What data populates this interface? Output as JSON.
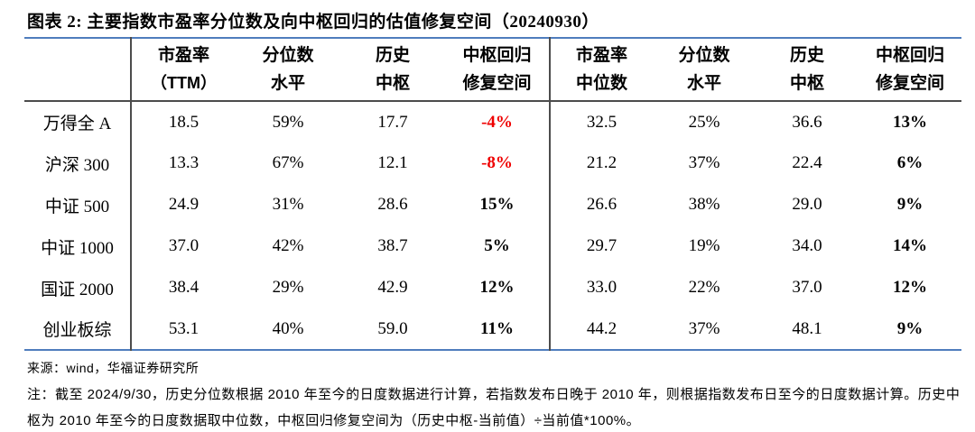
{
  "title": "图表 2:  主要指数市盈率分位数及向中枢回归的估值修复空间（20240930）",
  "colors": {
    "accent_blue": "#4f7dbd",
    "negative_red": "#ef0000",
    "divider_gray": "#4c4c4c"
  },
  "table": {
    "header_left": [
      {
        "line1": "市盈率",
        "line2": "（TTM）"
      },
      {
        "line1": "分位数",
        "line2": "水平"
      },
      {
        "line1": "历史",
        "line2": "中枢"
      },
      {
        "line1": "中枢回归",
        "line2": "修复空间"
      }
    ],
    "header_right": [
      {
        "line1": "市盈率",
        "line2": "中位数"
      },
      {
        "line1": "分位数",
        "line2": "水平"
      },
      {
        "line1": "历史",
        "line2": "中枢"
      },
      {
        "line1": "中枢回归",
        "line2": "修复空间"
      }
    ],
    "rows": [
      {
        "label": "万得全 A",
        "cells": [
          "18.5",
          "59%",
          "17.7",
          "-4%",
          "32.5",
          "25%",
          "36.6",
          "13%"
        ]
      },
      {
        "label": "沪深 300",
        "cells": [
          "13.3",
          "67%",
          "12.1",
          "-8%",
          "21.2",
          "37%",
          "22.4",
          "6%"
        ]
      },
      {
        "label": "中证 500",
        "cells": [
          "24.9",
          "31%",
          "28.6",
          "15%",
          "26.6",
          "38%",
          "29.0",
          "9%"
        ]
      },
      {
        "label": "中证 1000",
        "cells": [
          "37.0",
          "42%",
          "38.7",
          "5%",
          "29.7",
          "19%",
          "34.0",
          "14%"
        ]
      },
      {
        "label": "国证 2000",
        "cells": [
          "38.4",
          "29%",
          "42.9",
          "12%",
          "33.0",
          "22%",
          "37.0",
          "12%"
        ]
      },
      {
        "label": "创业板综",
        "cells": [
          "53.1",
          "40%",
          "59.0",
          "11%",
          "44.2",
          "37%",
          "48.1",
          "9%"
        ]
      }
    ]
  },
  "source": "来源：wind，华福证券研究所",
  "note_lines": [
    "注：截至 2024/9/30，历史分位数根据 2010 年至今的日度数据进行计算，若指数发布日晚于 2010 年，则根据指数发布日至今的日度数据计算。历史中",
    "枢为 2010 年至今的日度数据取中位数，中枢回归修复空间为（历史中枢-当前值）÷当前值*100%。"
  ]
}
